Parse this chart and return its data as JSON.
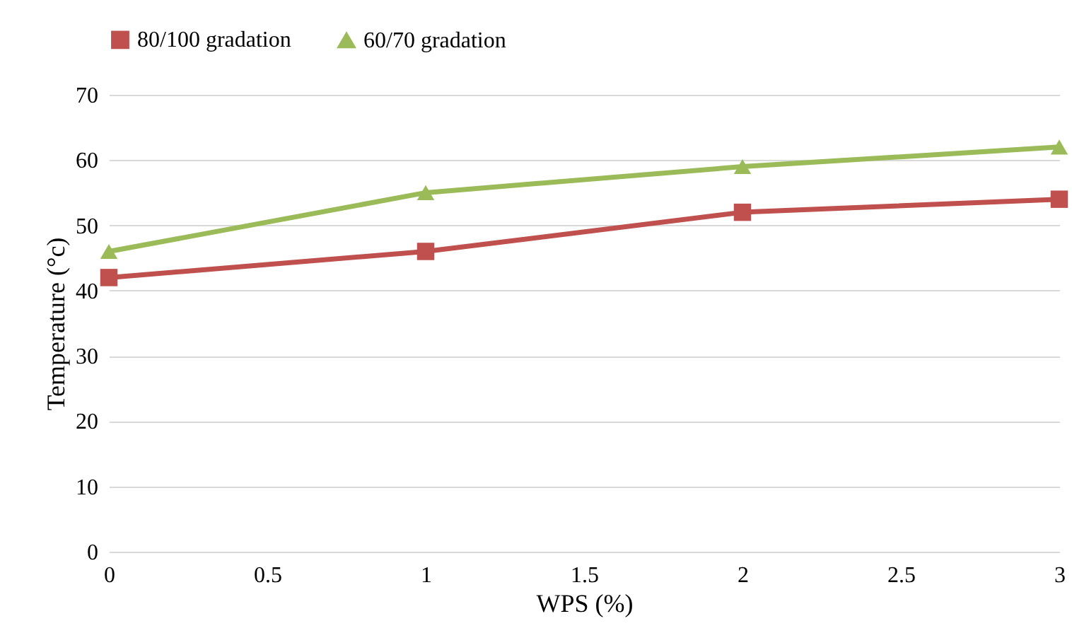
{
  "chart_data": {
    "type": "line",
    "xlabel": "WPS (%)",
    "ylabel": "Temperature (°c)",
    "x": [
      0,
      1,
      2,
      3
    ],
    "xlim": [
      0,
      3
    ],
    "xticks": [
      0,
      0.5,
      1,
      1.5,
      2,
      2.5,
      3
    ],
    "ylim": [
      0,
      70
    ],
    "yticks": [
      0,
      10,
      20,
      30,
      40,
      50,
      60,
      70
    ],
    "grid": "y",
    "legend": "top",
    "line_style": "solid",
    "series": [
      {
        "name": "80/100 gradation",
        "color": "#c0504d",
        "marker": "square",
        "values": [
          42,
          46,
          52,
          54
        ]
      },
      {
        "name": "60/70 gradation",
        "color": "#9bbb59",
        "marker": "triangle",
        "values": [
          46,
          55,
          59,
          62
        ]
      }
    ]
  }
}
